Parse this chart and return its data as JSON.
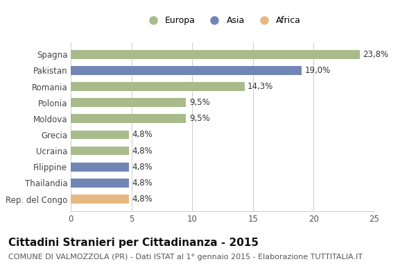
{
  "countries": [
    "Spagna",
    "Pakistan",
    "Romania",
    "Polonia",
    "Moldova",
    "Grecia",
    "Ucraina",
    "Filippine",
    "Thailandia",
    "Rep. del Congo"
  ],
  "values": [
    23.8,
    19.0,
    14.3,
    9.5,
    9.5,
    4.8,
    4.8,
    4.8,
    4.8,
    4.8
  ],
  "labels": [
    "23,8%",
    "19,0%",
    "14,3%",
    "9,5%",
    "9,5%",
    "4,8%",
    "4,8%",
    "4,8%",
    "4,8%",
    "4,8%"
  ],
  "colors": [
    "#a8bb8a",
    "#7286b5",
    "#a8bb8a",
    "#a8bb8a",
    "#a8bb8a",
    "#a8bb8a",
    "#a8bb8a",
    "#7286b5",
    "#7286b5",
    "#e8b882"
  ],
  "legend_labels": [
    "Europa",
    "Asia",
    "Africa"
  ],
  "legend_colors": [
    "#a8bb8a",
    "#7286b5",
    "#e8b882"
  ],
  "xlim": [
    0,
    25
  ],
  "xticks": [
    0,
    5,
    10,
    15,
    20,
    25
  ],
  "title": "Cittadini Stranieri per Cittadinanza - 2015",
  "subtitle": "COMUNE DI VALMOZZOLA (PR) - Dati ISTAT al 1° gennaio 2015 - Elaborazione TUTTITALIA.IT",
  "bg_color": "#ffffff",
  "bar_height": 0.55,
  "label_fontsize": 8.5,
  "title_fontsize": 11,
  "subtitle_fontsize": 8,
  "ytick_fontsize": 8.5,
  "xtick_fontsize": 8.5
}
